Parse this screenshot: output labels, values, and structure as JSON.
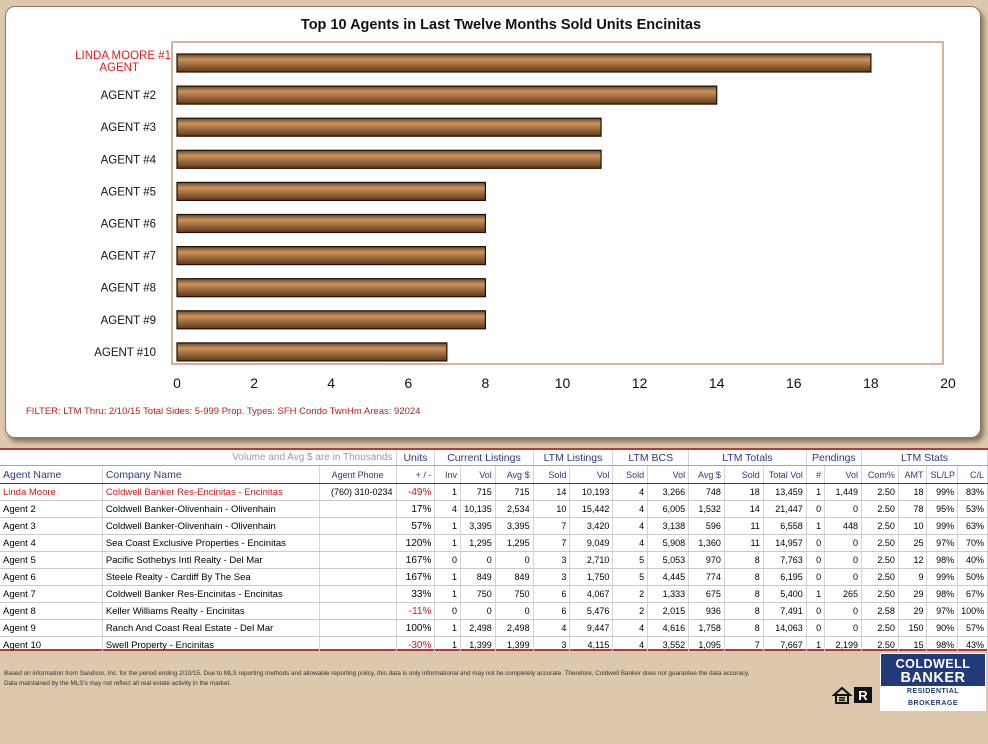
{
  "chart_data": {
    "type": "bar",
    "orientation": "horizontal",
    "title": "Top 10 Agents in Last Twelve Months Sold Units Encinitas",
    "categories": [
      "LINDA MOORE #1 AGENT",
      "AGENT #2",
      "AGENT #3",
      "AGENT #4",
      "AGENT #5",
      "AGENT #6",
      "AGENT #7",
      "AGENT #8",
      "AGENT #9",
      "AGENT #10"
    ],
    "values": [
      18,
      14,
      11,
      11,
      8,
      8,
      8,
      8,
      8,
      7
    ],
    "xlim": [
      0,
      20
    ],
    "xticks": [
      "0",
      "2",
      "4",
      "6",
      "8",
      "10",
      "12",
      "14",
      "16",
      "18",
      "20"
    ],
    "grid": false,
    "bar_color": "#9b6a3a",
    "highlight_color": "#e02020"
  },
  "filter_text": "FILTER: LTM Thru: 2/10/15 Total Sides: 5-999  Prop. Types: SFH Condo TwnHm  Areas: 92024",
  "table": {
    "note": "Volume and Avg $ are in Thousands",
    "groups": {
      "units": "Units",
      "current": "Current Listings",
      "ltm_listings": "LTM Listings",
      "ltm_bcs": "LTM BCS",
      "ltm_totals": "LTM Totals",
      "pendings": "Pendings",
      "ltm_stats": "LTM Stats"
    },
    "headers": {
      "agent": "Agent Name",
      "company": "Company Name",
      "phone": "Agent Phone",
      "pm": "+ / -",
      "inv": "Inv",
      "vol": "Vol",
      "avg": "Avg $",
      "sold": "Sold",
      "num": "#",
      "total_vol": "Total Vol",
      "com": "Com%",
      "amt": "AMT",
      "sllp": "SL/LP",
      "cl": "C/L"
    },
    "rows": [
      [
        "Linda Moore",
        "Coldwell Banker Res-Encinitas - Encinitas",
        "(760) 310-0234",
        "-49%",
        "1",
        "715",
        "715",
        "14",
        "10,193",
        "4",
        "3,266",
        "748",
        "18",
        "13,459",
        "1",
        "1,449",
        "2.50",
        "18",
        "99%",
        "83%"
      ],
      [
        "Agent 2",
        "Coldwell Banker-Olivenhain - Olivenhain",
        "",
        "17%",
        "4",
        "10,135",
        "2,534",
        "10",
        "15,442",
        "4",
        "6,005",
        "1,532",
        "14",
        "21,447",
        "0",
        "0",
        "2.50",
        "78",
        "95%",
        "53%"
      ],
      [
        "Agent 3",
        "Coldwell Banker-Olivenhain - Olivenhain",
        "",
        "57%",
        "1",
        "3,395",
        "3,395",
        "7",
        "3,420",
        "4",
        "3,138",
        "596",
        "11",
        "6,558",
        "1",
        "448",
        "2.50",
        "10",
        "99%",
        "63%"
      ],
      [
        "Agent 4",
        "Sea Coast Exclusive Properties - Encinitas",
        "",
        "120%",
        "1",
        "1,295",
        "1,295",
        "7",
        "9,049",
        "4",
        "5,908",
        "1,360",
        "11",
        "14,957",
        "0",
        "0",
        "2.50",
        "25",
        "97%",
        "70%"
      ],
      [
        "Agent 5",
        "Pacific Sothebys Intl Realty - Del Mar",
        "",
        "167%",
        "0",
        "0",
        "0",
        "3",
        "2,710",
        "5",
        "5,053",
        "970",
        "8",
        "7,763",
        "0",
        "0",
        "2.50",
        "12",
        "98%",
        "40%"
      ],
      [
        "Agent 6",
        "Steele Realty - Cardiff By The Sea",
        "",
        "167%",
        "1",
        "849",
        "849",
        "3",
        "1,750",
        "5",
        "4,445",
        "774",
        "8",
        "6,195",
        "0",
        "0",
        "2.50",
        "9",
        "99%",
        "50%"
      ],
      [
        "Agent 7",
        "Coldwell Banker Res-Encinitas - Encinitas",
        "",
        "33%",
        "1",
        "750",
        "750",
        "6",
        "4,067",
        "2",
        "1,333",
        "675",
        "8",
        "5,400",
        "1",
        "265",
        "2.50",
        "29",
        "98%",
        "67%"
      ],
      [
        "Agent 8",
        "Keller Williams Realty - Encinitas",
        "",
        "-11%",
        "0",
        "0",
        "0",
        "6",
        "5,476",
        "2",
        "2,015",
        "936",
        "8",
        "7,491",
        "0",
        "0",
        "2.58",
        "29",
        "97%",
        "100%"
      ],
      [
        "Agent 9",
        "Ranch And Coast Real Estate - Del Mar",
        "",
        "100%",
        "1",
        "2,498",
        "2,498",
        "4",
        "9,447",
        "4",
        "4,616",
        "1,758",
        "8",
        "14,063",
        "0",
        "0",
        "2.50",
        "150",
        "90%",
        "57%"
      ],
      [
        "Agent 10",
        "Swell Property - Encinitas",
        "",
        "-30%",
        "1",
        "1,399",
        "1,399",
        "3",
        "4,115",
        "4",
        "3,552",
        "1,095",
        "7",
        "7,667",
        "1",
        "2,199",
        "2.50",
        "15",
        "98%",
        "43%"
      ]
    ]
  },
  "footnote_1": "Based on information from Sandicor, Inc. for the period ending 2/10/15.  Due to MLS reporting methods and allowable reporting policy, this data is only informational and may not be completely accurate.  Therefore, Coldwell Banker does not guarantee the data accuracy.",
  "footnote_2": " Data maintained by the MLS's may not reflect all real estate activity in the market.",
  "logo": {
    "line1": "COLDWELL",
    "line2": "BANKER",
    "line3": "RESIDENTIAL BROKERAGE"
  },
  "icons": {
    "equal_housing": "equal-housing-icon",
    "realtor": "realtor-icon"
  }
}
